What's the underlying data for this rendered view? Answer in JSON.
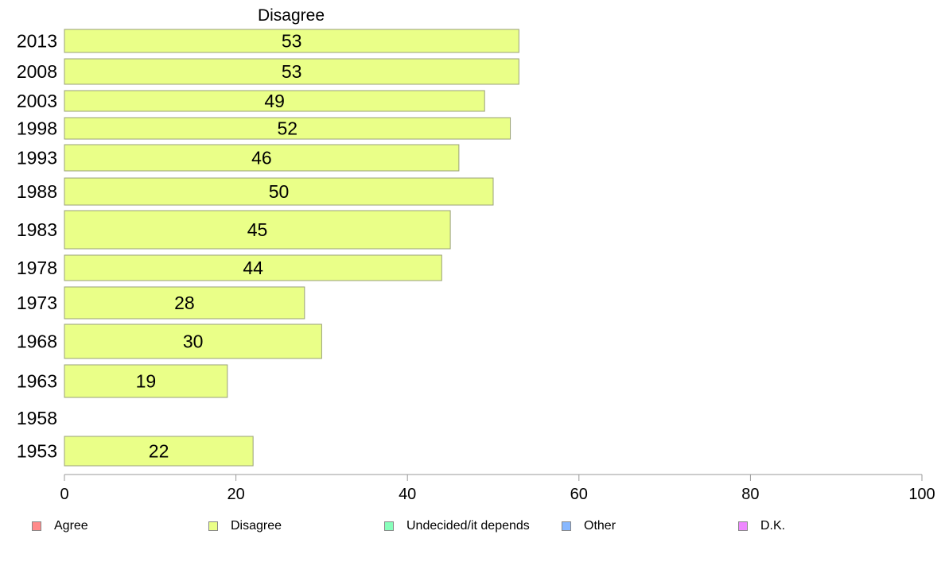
{
  "chart_data": {
    "type": "bar",
    "orientation": "horizontal",
    "title": "Disagree",
    "categories": [
      "2013",
      "2008",
      "2003",
      "1998",
      "1993",
      "1988",
      "1983",
      "1978",
      "1973",
      "1968",
      "1963",
      "1958",
      "1953"
    ],
    "series": [
      {
        "name": "Disagree",
        "values": [
          53,
          53,
          49,
          52,
          46,
          50,
          45,
          44,
          28,
          30,
          19,
          null,
          22
        ],
        "color": "#eaff88"
      }
    ],
    "data_labels": [
      "53",
      "53",
      "49",
      "52",
      "46",
      "50",
      "45",
      "44",
      "28",
      "30",
      "19",
      "",
      "22"
    ],
    "xlim": [
      0,
      100
    ],
    "xticks": [
      0,
      20,
      40,
      60,
      80,
      100
    ],
    "xtick_labels": [
      "0",
      "20",
      "40",
      "60",
      "80",
      "100"
    ],
    "grid": false,
    "legend_position": "bottom",
    "legend": [
      {
        "label": "Agree",
        "color": "#ff8a8a"
      },
      {
        "label": "Disagree",
        "color": "#eaff88"
      },
      {
        "label": "Undecided/it depends",
        "color": "#88ffbb"
      },
      {
        "label": "Other",
        "color": "#88b8ff"
      },
      {
        "label": "D.K.",
        "color": "#ee88ff"
      }
    ]
  }
}
